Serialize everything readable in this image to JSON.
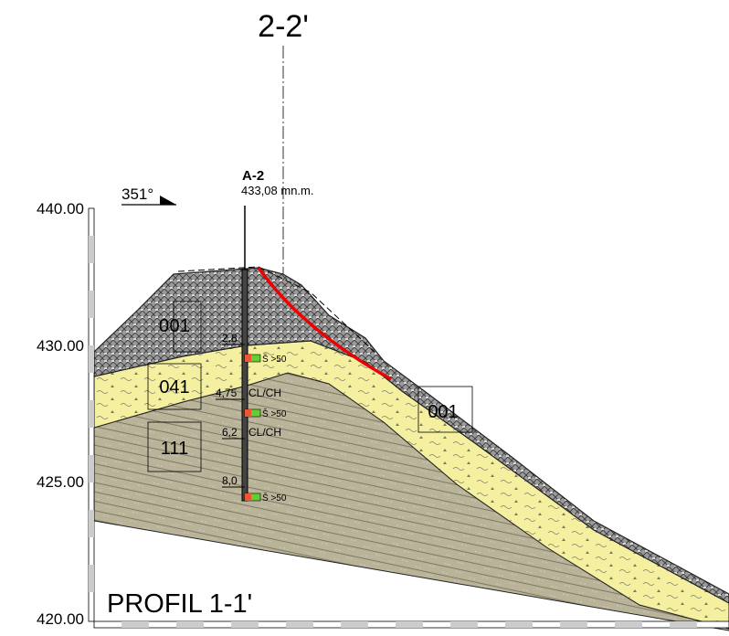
{
  "title": "PROFIL 1-1'",
  "section": "2-2'",
  "azimuth": "351°",
  "borehole": {
    "name": "A-2",
    "elevation": "433,08 mn.m.",
    "depths": [
      {
        "depth": "2,8"
      },
      {
        "depth": "4,75",
        "soil": "CL/CH"
      },
      {
        "depth": "6,2",
        "soil": "CL/CH"
      },
      {
        "depth": "8,0"
      }
    ],
    "samples": [
      "Š >50",
      "Š >50",
      "Š >50"
    ]
  },
  "elevation_axis": [
    "440.00",
    "430.00",
    "425.00",
    "420.00"
  ],
  "layers": [
    "001",
    "041",
    "111",
    "001"
  ]
}
